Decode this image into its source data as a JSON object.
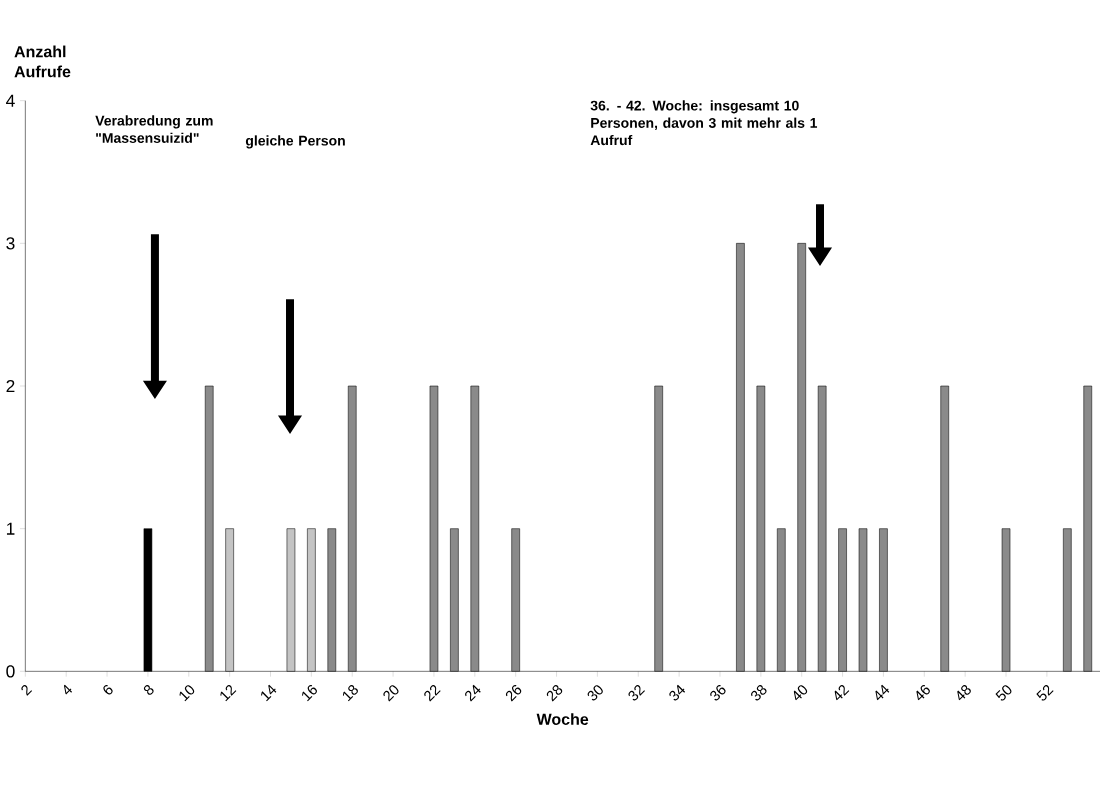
{
  "chart_data": {
    "type": "bar",
    "ylabel": "Anzahl Aufrufe",
    "xlabel": "Woche",
    "xlim": [
      2,
      54.6
    ],
    "xticks": [
      2,
      4,
      6,
      8,
      10,
      12,
      14,
      16,
      18,
      20,
      22,
      24,
      26,
      28,
      30,
      32,
      34,
      36,
      38,
      40,
      42,
      44,
      46,
      48,
      50,
      52
    ],
    "ylim": [
      0,
      4
    ],
    "yticks": [
      0,
      1,
      2,
      3,
      4
    ],
    "series": [
      {
        "color": "#000000",
        "x": [
          8
        ],
        "values": [
          1
        ]
      },
      {
        "color": "#8a8a8a",
        "x": [
          11,
          17,
          18,
          22,
          23,
          24,
          26,
          33,
          37,
          38,
          39,
          40,
          41,
          42,
          43,
          44,
          47,
          50,
          53,
          54
        ],
        "values": [
          2,
          1,
          2,
          2,
          1,
          2,
          1,
          2,
          3,
          2,
          1,
          3,
          2,
          1,
          1,
          1,
          2,
          1,
          1,
          2
        ]
      },
      {
        "color": "#c4c4c4",
        "x": [
          12,
          15,
          16
        ],
        "values": [
          1,
          1,
          1
        ]
      }
    ],
    "annotations": [
      "Verabredung zum \"Massensuizid\"",
      "gleiche Person",
      "36. -  42. Woche: insgesamt 10  Personen, davon 3  mit mehr als 1 Aufruf"
    ]
  }
}
